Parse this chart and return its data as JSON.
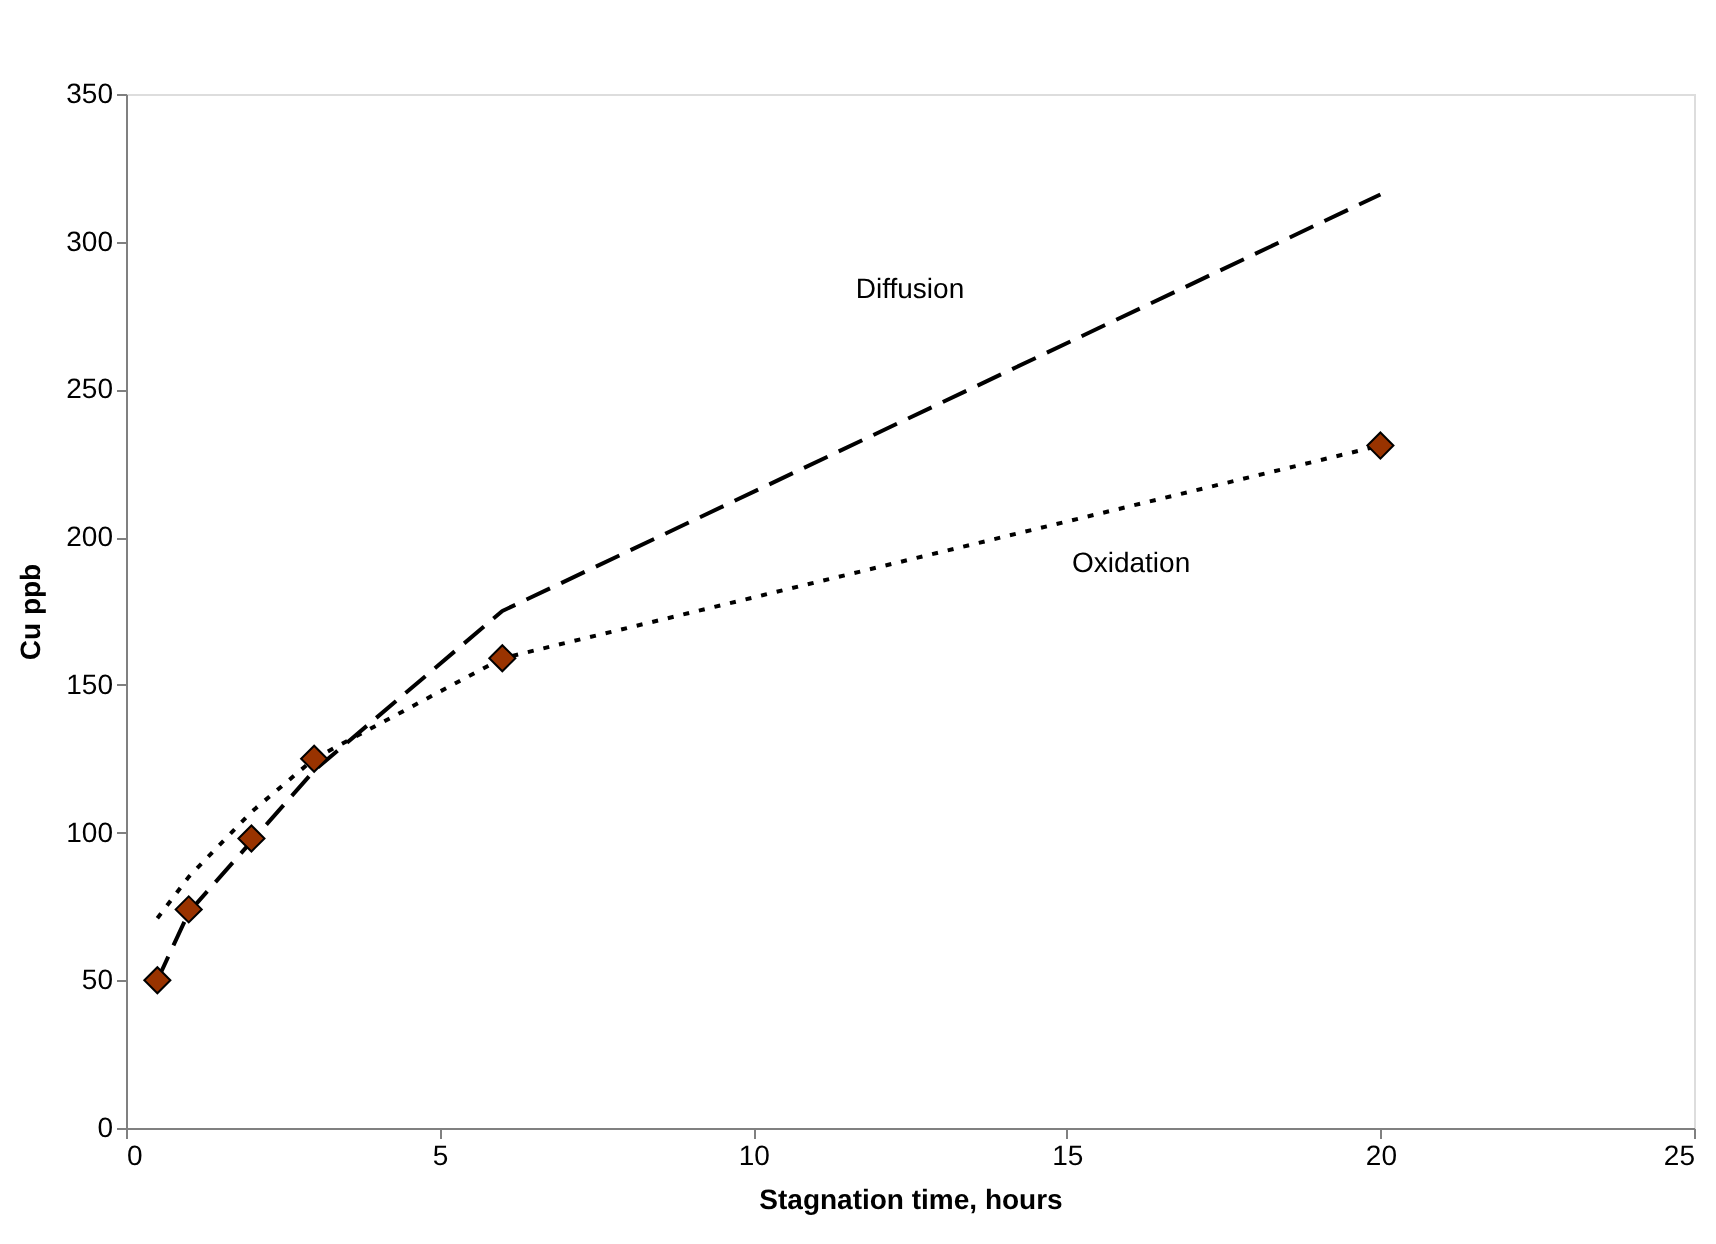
{
  "chart_data": {
    "type": "scatter",
    "xlabel": "Stagnation time, hours",
    "ylabel": "Cu ppb",
    "xlim": [
      0,
      25
    ],
    "xticks": [
      0,
      5,
      10,
      15,
      20,
      25
    ],
    "ylim": [
      0,
      350
    ],
    "yticks": [
      0,
      50,
      100,
      150,
      200,
      250,
      300,
      350
    ],
    "grid": false,
    "series": [
      {
        "type": "line",
        "line_style": "dashed",
        "marker": "none",
        "color": "#000000",
        "x": [
          0.5,
          1,
          2,
          3,
          6,
          20
        ],
        "values": [
          50,
          73,
          97,
          121,
          175,
          316
        ]
      },
      {
        "type": "line",
        "line_style": "dotted",
        "marker": "none",
        "color": "#000000",
        "x": [
          0.5,
          1,
          2,
          3,
          6,
          20
        ],
        "values": [
          71,
          85,
          107,
          125,
          159,
          231
        ]
      },
      {
        "marker": "diamond",
        "color": "#993300",
        "x": [
          0.5,
          1,
          2,
          3,
          6,
          20
        ],
        "values": [
          50,
          74,
          98,
          125,
          159,
          231
        ]
      }
    ],
    "annotations": [
      "Diffusion",
      "Oxidation"
    ]
  }
}
